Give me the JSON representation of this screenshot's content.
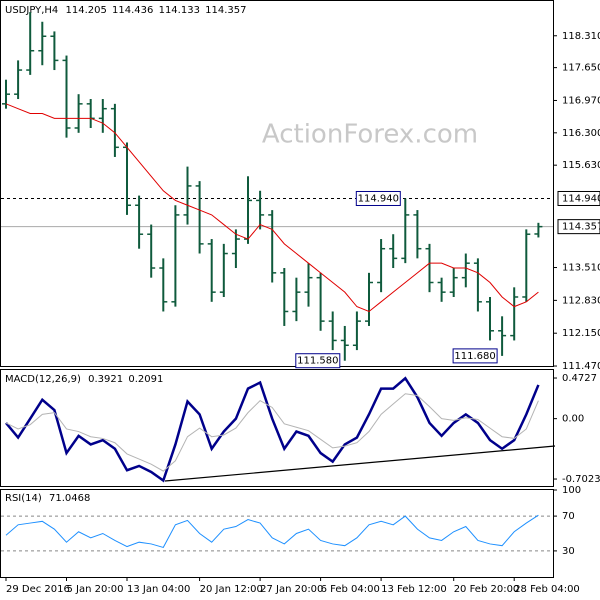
{
  "chart_data": [
    {
      "type": "ohlc",
      "watermark": "ActionForex.com",
      "categories": [
        "29 Dec 2016",
        null,
        null,
        null,
        null,
        "5 Jan 20:00",
        null,
        null,
        null,
        null,
        "13 Jan 04:00",
        null,
        null,
        null,
        null,
        null,
        "20 Jan 12:00",
        null,
        null,
        null,
        null,
        "27 Jan 20:00",
        null,
        null,
        null,
        null,
        "6 Feb 04:00",
        null,
        null,
        null,
        null,
        "13 Feb 12:00",
        null,
        null,
        null,
        null,
        null,
        "20 Feb 20:00",
        null,
        null,
        null,
        null,
        "28 Feb 04:00",
        null,
        null
      ],
      "ylim": [
        111.45,
        119.03
      ],
      "yticks": [
        {
          "value": 118.31,
          "label": "118.310"
        },
        {
          "value": 117.65,
          "label": "117.650"
        },
        {
          "value": 116.97,
          "label": "116.970"
        },
        {
          "value": 116.3,
          "label": "116.300"
        },
        {
          "value": 115.63,
          "label": "115.630"
        },
        {
          "value": 113.51,
          "label": "113.510"
        },
        {
          "value": 112.83,
          "label": "112.830"
        },
        {
          "value": 112.15,
          "label": "112.150"
        },
        {
          "value": 111.47,
          "label": "111.470"
        }
      ],
      "levels": [
        {
          "value": 114.94,
          "label": "114.940",
          "style": "dashed"
        },
        {
          "value": 114.357,
          "label": "114.357",
          "style": "solid"
        }
      ],
      "annotations": [
        {
          "value": 114.94,
          "label": "114.940"
        },
        {
          "value": 111.58,
          "label": "111.580"
        },
        {
          "value": 111.68,
          "label": "111.680"
        }
      ],
      "series": [
        {
          "name": "USDJPY,H4",
          "type": "ohlc",
          "color": "#0f5a3c",
          "open": [
            116.9,
            117.1,
            117.6,
            118.0,
            118.3,
            117.8,
            116.4,
            116.9,
            116.6,
            116.8,
            116.0,
            114.8,
            114.2,
            113.5,
            112.8,
            114.6,
            115.2,
            114.0,
            113.0,
            113.8,
            114.1,
            114.9,
            114.6,
            113.4,
            112.6,
            113.0,
            113.3,
            112.4,
            112.0,
            111.9,
            112.4,
            113.2,
            113.9,
            113.7,
            114.6,
            113.9,
            113.2,
            113.0,
            113.3,
            113.6,
            112.8,
            112.2,
            112.1,
            112.9,
            114.205
          ],
          "high": [
            117.4,
            117.8,
            118.8,
            118.6,
            118.4,
            117.9,
            117.1,
            117.0,
            117.0,
            116.9,
            116.1,
            115.0,
            114.4,
            113.7,
            114.8,
            115.6,
            115.3,
            114.1,
            114.0,
            114.3,
            115.4,
            115.1,
            114.7,
            113.5,
            113.3,
            113.6,
            113.4,
            112.6,
            112.3,
            112.6,
            113.4,
            114.1,
            114.2,
            114.94,
            114.7,
            114.0,
            113.3,
            113.5,
            113.8,
            113.7,
            112.9,
            112.5,
            113.1,
            114.3,
            114.436
          ],
          "low": [
            116.8,
            117.0,
            117.5,
            117.7,
            117.6,
            116.2,
            116.3,
            116.4,
            116.3,
            115.8,
            114.6,
            113.9,
            113.3,
            112.6,
            112.7,
            114.4,
            113.8,
            112.8,
            112.9,
            113.5,
            114.0,
            114.3,
            113.2,
            112.3,
            112.4,
            112.7,
            112.2,
            111.8,
            111.58,
            111.8,
            112.3,
            113.0,
            113.5,
            113.6,
            113.7,
            113.0,
            112.8,
            112.9,
            113.1,
            112.6,
            112.0,
            111.68,
            112.0,
            112.8,
            114.133
          ],
          "close": [
            117.1,
            117.6,
            118.0,
            118.3,
            117.8,
            116.4,
            116.9,
            116.6,
            116.8,
            116.0,
            114.8,
            114.2,
            113.5,
            112.8,
            114.6,
            115.2,
            114.0,
            113.0,
            113.8,
            114.1,
            114.9,
            114.6,
            113.4,
            112.6,
            113.0,
            113.3,
            112.4,
            112.0,
            111.9,
            112.4,
            113.2,
            113.9,
            113.7,
            114.6,
            113.9,
            113.2,
            113.0,
            113.3,
            113.6,
            112.8,
            112.2,
            112.1,
            112.9,
            114.2,
            114.357
          ]
        },
        {
          "type": "line",
          "color": "#e00000",
          "values": [
            116.9,
            116.8,
            116.7,
            116.7,
            116.6,
            116.6,
            116.6,
            116.6,
            116.5,
            116.3,
            116.0,
            115.7,
            115.4,
            115.1,
            114.9,
            114.8,
            114.7,
            114.6,
            114.4,
            114.2,
            114.1,
            114.4,
            114.3,
            114.0,
            113.8,
            113.6,
            113.4,
            113.2,
            113.0,
            112.7,
            112.6,
            112.8,
            113.0,
            113.2,
            113.4,
            113.6,
            113.6,
            113.5,
            113.5,
            113.4,
            113.2,
            112.9,
            112.7,
            112.8,
            113.0
          ]
        }
      ]
    },
    {
      "type": "line",
      "title": "MACD(12,26,9)",
      "ylim": [
        -0.795,
        0.566
      ],
      "yticks": [
        0.4727,
        {
          "value": 0,
          "label": "0.00"
        },
        -0.7023
      ],
      "series": [
        {
          "color": "#00008b",
          "width": 2.5,
          "values": [
            -0.05,
            -0.22,
            0.0,
            0.22,
            0.1,
            -0.4,
            -0.2,
            -0.3,
            -0.25,
            -0.35,
            -0.6,
            -0.55,
            -0.62,
            -0.72,
            -0.3,
            0.2,
            0.05,
            -0.35,
            -0.15,
            0.0,
            0.35,
            0.42,
            0.0,
            -0.35,
            -0.15,
            -0.2,
            -0.4,
            -0.5,
            -0.3,
            -0.22,
            0.05,
            0.35,
            0.35,
            0.47,
            0.25,
            -0.05,
            -0.2,
            -0.05,
            0.05,
            -0.05,
            -0.25,
            -0.35,
            -0.25,
            0.05,
            0.3921
          ]
        },
        {
          "color": "#b4b4b4",
          "width": 1,
          "values": [
            -0.05,
            -0.12,
            -0.07,
            0.05,
            0.07,
            -0.12,
            -0.15,
            -0.21,
            -0.23,
            -0.28,
            -0.41,
            -0.47,
            -0.53,
            -0.61,
            -0.49,
            -0.21,
            -0.11,
            -0.21,
            -0.19,
            -0.11,
            0.07,
            0.21,
            0.13,
            -0.06,
            -0.1,
            -0.14,
            -0.24,
            -0.34,
            -0.32,
            -0.28,
            -0.15,
            0.05,
            0.17,
            0.29,
            0.27,
            0.14,
            0.0,
            -0.02,
            0.01,
            -0.01,
            -0.11,
            -0.21,
            -0.23,
            -0.12,
            0.2091
          ]
        }
      ]
    },
    {
      "type": "line",
      "title": "RSI(14)",
      "ylim": [
        0,
        100
      ],
      "yticks": [
        100,
        70,
        30
      ],
      "grid": [
        70,
        30
      ],
      "series": [
        {
          "color": "#1e90ff",
          "width": 1,
          "values": [
            48,
            60,
            62,
            64,
            55,
            40,
            52,
            45,
            50,
            42,
            35,
            40,
            38,
            34,
            60,
            65,
            50,
            40,
            55,
            58,
            66,
            62,
            45,
            38,
            50,
            55,
            42,
            38,
            36,
            45,
            60,
            64,
            60,
            70,
            55,
            45,
            42,
            52,
            58,
            42,
            38,
            36,
            52,
            62,
            71.0468
          ]
        }
      ]
    }
  ]
}
